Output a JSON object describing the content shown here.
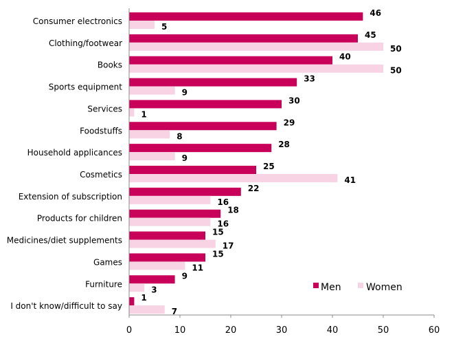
{
  "chart_data": {
    "type": "bar",
    "orientation": "horizontal",
    "categories": [
      "Consumer electronics",
      "Clothing/footwear",
      "Books",
      "Sports equipment",
      "Services",
      "Foodstuffs",
      "Household applicances",
      "Cosmetics",
      "Extension of subscription",
      "Products for children",
      "Medicines/diet supplements",
      "Games",
      "Furniture",
      "I don't know/difficult to say"
    ],
    "series": [
      {
        "name": "Men",
        "color": "#C8005A",
        "values": [
          46,
          45,
          40,
          33,
          30,
          29,
          28,
          25,
          22,
          18,
          15,
          15,
          9,
          1
        ]
      },
      {
        "name": "Women",
        "color": "#F8D3E3",
        "values": [
          5,
          50,
          50,
          9,
          1,
          8,
          9,
          41,
          16,
          16,
          17,
          11,
          3,
          7
        ]
      }
    ],
    "xlim": [
      0,
      60
    ],
    "xticks": [
      "0",
      "10",
      "20",
      "30",
      "40",
      "50",
      "60"
    ],
    "legend": {
      "position": "bottom-right"
    },
    "grid": false
  }
}
